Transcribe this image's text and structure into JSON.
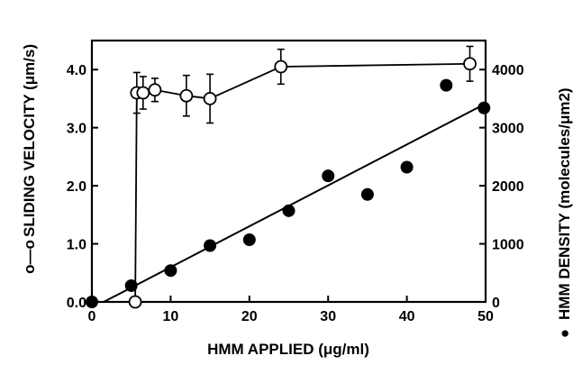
{
  "chart_data": {
    "type": "scatter",
    "title": "",
    "xlabel": "HMM APPLIED (μg/ml)",
    "ylabel_left": "SLIDING VELOCITY (μm/s)",
    "ylabel_right": "HMM DENSITY (molecules/μm2)",
    "left_legend_symbol": "o—o",
    "right_legend_symbol": "●",
    "xlim": [
      0,
      50
    ],
    "ylim_left": [
      0,
      4.5
    ],
    "ylim_right": [
      0,
      4500
    ],
    "x_ticks": [
      "0",
      "10",
      "20",
      "30",
      "40",
      "50"
    ],
    "y_left_ticks": [
      "0.0",
      "1.0",
      "2.0",
      "3.0",
      "4.0"
    ],
    "y_right_ticks": [
      "0",
      "1000",
      "2000",
      "3000",
      "4000"
    ],
    "grid": false,
    "series": [
      {
        "axis": "left",
        "marker": "open-circle",
        "connected": true,
        "x": [
          5.5,
          5.7,
          6.5,
          8,
          12,
          15,
          24,
          48
        ],
        "y": [
          0.0,
          3.6,
          3.6,
          3.65,
          3.55,
          3.5,
          4.05,
          4.1
        ],
        "err": [
          0,
          0.35,
          0.28,
          0.2,
          0.35,
          0.42,
          0.3,
          0.3
        ]
      },
      {
        "axis": "right",
        "marker": "filled-circle",
        "connected": false,
        "x": [
          0,
          5,
          10,
          15,
          20,
          25,
          30,
          35,
          40,
          45,
          49.8
        ],
        "y": [
          0,
          280,
          540,
          970,
          1070,
          1570,
          2170,
          1850,
          2320,
          3730,
          3340
        ]
      }
    ],
    "fit_line": {
      "axis": "right",
      "x": [
        1.5,
        49.8
      ],
      "y": [
        0,
        3400
      ]
    }
  }
}
